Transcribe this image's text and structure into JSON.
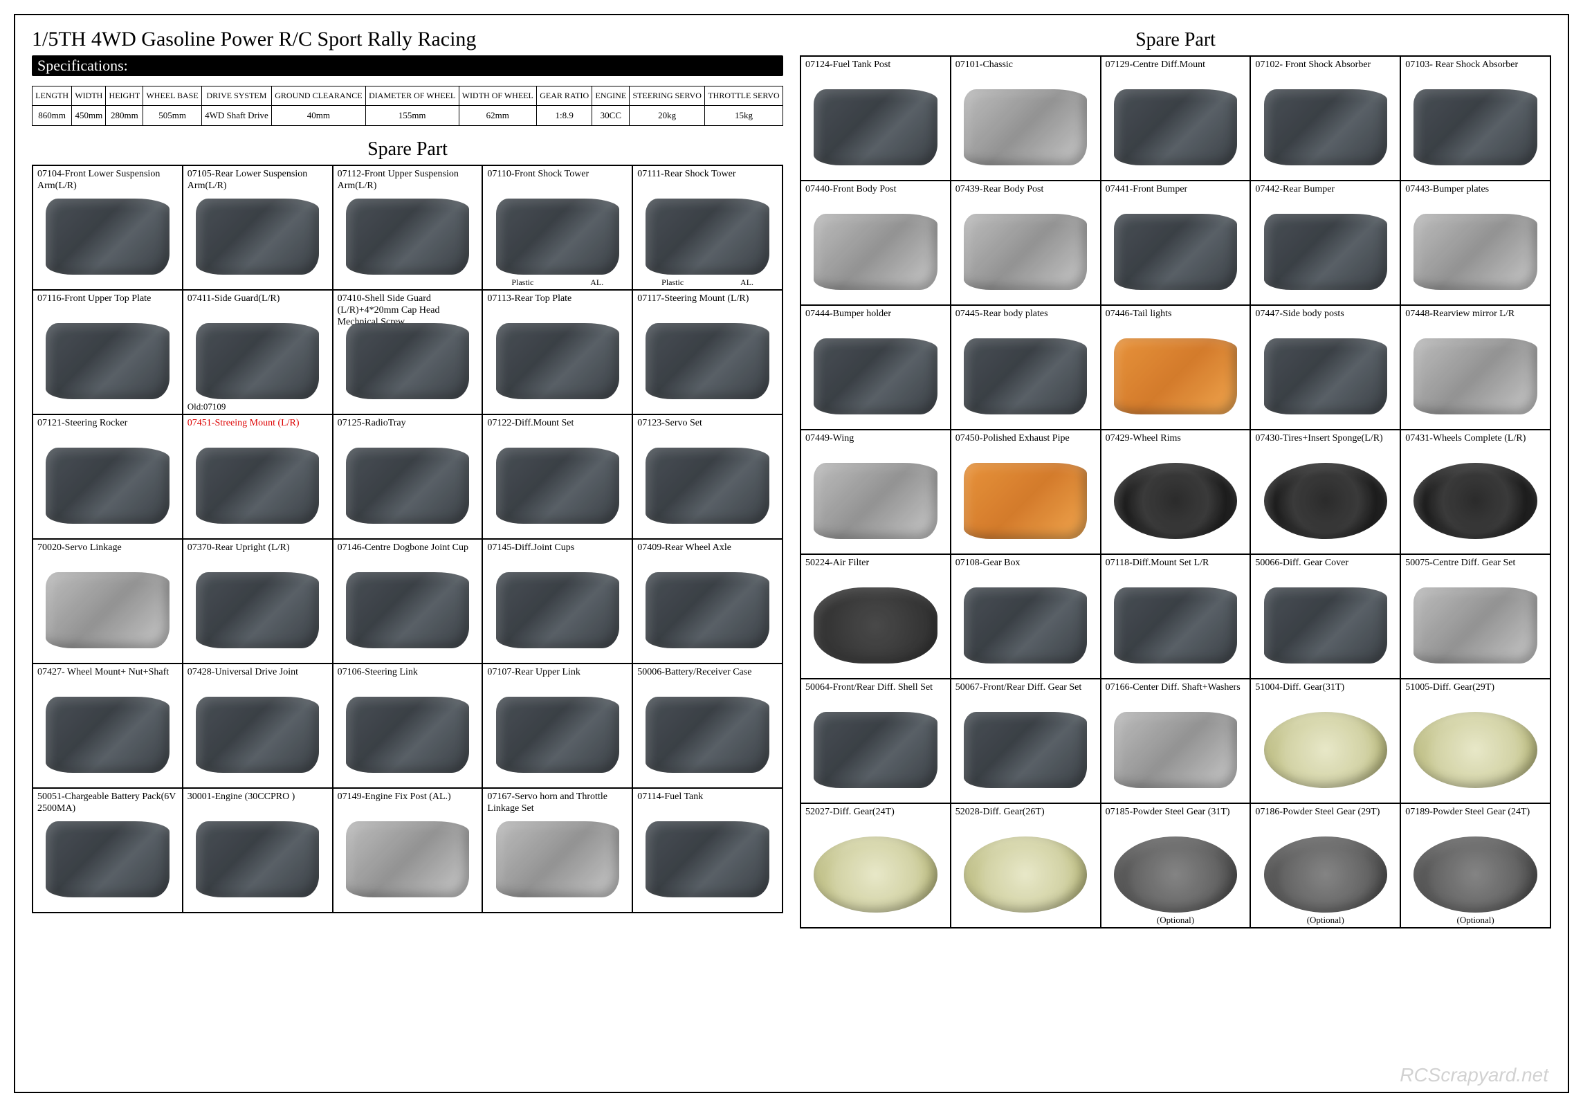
{
  "title": "1/5TH 4WD Gasoline Power R/C Sport Rally Racing",
  "spec_label": "Specifications:",
  "spare_title": "Spare Part",
  "watermark": "RCScrapyard.net",
  "spec": {
    "headers": [
      "LENGTH",
      "WIDTH",
      "HEIGHT",
      "WHEEL BASE",
      "DRIVE SYSTEM",
      "GROUND CLEARANCE",
      "DIAMETER OF WHEEL",
      "WIDTH OF WHEEL",
      "GEAR RATIO",
      "ENGINE",
      "STEERING SERVO",
      "THROTTLE SERVO"
    ],
    "values": [
      "860mm",
      "450mm",
      "280mm",
      "505mm",
      "4WD Shaft Drive",
      "40mm",
      "155mm",
      "62mm",
      "1:8.9",
      "30CC",
      "20kg",
      "15kg"
    ]
  },
  "left_parts": [
    {
      "label": "07104-Front Lower Suspension Arm(L/R)"
    },
    {
      "label": "07105-Rear Lower Suspension Arm(L/R)"
    },
    {
      "label": "07112-Front Upper Suspension Arm(L/R)"
    },
    {
      "label": "07110-Front Shock Tower",
      "sub": [
        "Plastic",
        "AL."
      ]
    },
    {
      "label": "07111-Rear Shock Tower",
      "sub": [
        "Plastic",
        "AL."
      ]
    },
    {
      "label": "07116-Front Upper Top Plate"
    },
    {
      "label": "07411-Side Guard(L/R)",
      "note": "Old:07109"
    },
    {
      "label": "07410-Shell Side Guard (L/R)+4*20mm Cap Head Mechnical Screw"
    },
    {
      "label": "07113-Rear Top Plate"
    },
    {
      "label": "07117-Steering Mount (L/R)"
    },
    {
      "label": "07121-Steering Rocker"
    },
    {
      "label": "07451-Streeing Mount (L/R)",
      "red": true
    },
    {
      "label": "07125-RadioTray"
    },
    {
      "label": "07122-Diff.Mount Set"
    },
    {
      "label": "07123-Servo Set"
    },
    {
      "label": "70020-Servo Linkage",
      "img": "light"
    },
    {
      "label": "07370-Rear Upright (L/R)"
    },
    {
      "label": "07146-Centre Dogbone Joint Cup"
    },
    {
      "label": "07145-Diff.Joint Cups"
    },
    {
      "label": "07409-Rear Wheel Axle"
    },
    {
      "label": "07427- Wheel Mount+ Nut+Shaft"
    },
    {
      "label": "07428-Universal Drive Joint"
    },
    {
      "label": "07106-Steering Link"
    },
    {
      "label": "07107-Rear Upper Link"
    },
    {
      "label": "50006-Battery/Receiver Case"
    },
    {
      "label": "50051-Chargeable Battery Pack(6V 2500MA)"
    },
    {
      "label": "30001-Engine (30CCPRO )"
    },
    {
      "label": "07149-Engine Fix Post (AL.)",
      "img": "light"
    },
    {
      "label": "07167-Servo horn and Throttle Linkage Set",
      "img": "light"
    },
    {
      "label": "07114-Fuel Tank"
    }
  ],
  "right_parts": [
    {
      "label": "07124-Fuel Tank Post"
    },
    {
      "label": "07101-Chassic",
      "img": "light"
    },
    {
      "label": "07129-Centre Diff.Mount"
    },
    {
      "label": "07102- Front Shock Absorber"
    },
    {
      "label": "07103- Rear Shock Absorber"
    },
    {
      "label": "07440-Front Body Post",
      "img": "light"
    },
    {
      "label": "07439-Rear Body Post",
      "img": "light"
    },
    {
      "label": "07441-Front Bumper"
    },
    {
      "label": "07442-Rear Bumper"
    },
    {
      "label": "07443-Bumper plates",
      "img": "light"
    },
    {
      "label": "07444-Bumper holder"
    },
    {
      "label": "07445-Rear body plates"
    },
    {
      "label": "07446-Tail lights",
      "img": "orange"
    },
    {
      "label": "07447-Side body posts"
    },
    {
      "label": "07448-Rearview mirror L/R",
      "img": "light"
    },
    {
      "label": "07449-Wing",
      "img": "light"
    },
    {
      "label": "07450-Polished Exhaust Pipe",
      "img": "orange"
    },
    {
      "label": "07429-Wheel Rims",
      "img": "tire"
    },
    {
      "label": "07430-Tires+Insert Sponge(L/R)",
      "img": "tire"
    },
    {
      "label": "07431-Wheels Complete (L/R)",
      "img": "tire"
    },
    {
      "label": "50224-Air Filter",
      "img": "foam"
    },
    {
      "label": "07108-Gear Box"
    },
    {
      "label": "07118-Diff.Mount Set L/R"
    },
    {
      "label": "50066-Diff. Gear Cover"
    },
    {
      "label": "50075-Centre Diff. Gear Set",
      "img": "light"
    },
    {
      "label": "50064-Front/Rear Diff. Shell Set"
    },
    {
      "label": "50067-Front/Rear Diff. Gear Set"
    },
    {
      "label": "07166-Center Diff. Shaft+Washers",
      "img": "light"
    },
    {
      "label": "51004-Diff. Gear(31T)",
      "img": "gear"
    },
    {
      "label": "51005-Diff. Gear(29T)",
      "img": "gear"
    },
    {
      "label": "52027-Diff. Gear(24T)",
      "img": "gear"
    },
    {
      "label": "52028-Diff. Gear(26T)",
      "img": "gear"
    },
    {
      "label": "07185-Powder Steel Gear (31T)",
      "img": "gear dark",
      "note_center": "(Optional)"
    },
    {
      "label": "07186-Powder Steel Gear (29T)",
      "img": "gear dark",
      "note_center": "(Optional)"
    },
    {
      "label": "07189-Powder Steel Gear (24T)",
      "img": "gear dark",
      "note_center": "(Optional)"
    }
  ]
}
